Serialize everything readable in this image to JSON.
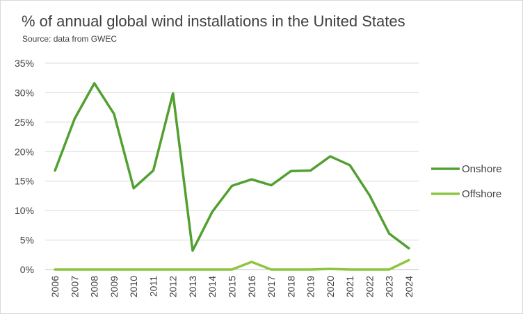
{
  "chart_data": {
    "type": "line",
    "title": "% of annual global wind installations in the United States",
    "subtitle": "Source: data from GWEC",
    "xlabel": "",
    "ylabel": "",
    "categories": [
      "2006",
      "2007",
      "2008",
      "2009",
      "2010",
      "2011",
      "2012",
      "2013",
      "2014",
      "2015",
      "2016",
      "2017",
      "2018",
      "2019",
      "2020",
      "2021",
      "2022",
      "2023",
      "2024"
    ],
    "series": [
      {
        "name": "Onshore",
        "color": "#52a030",
        "values": [
          16.8,
          25.6,
          31.6,
          26.4,
          13.8,
          16.8,
          29.9,
          3.2,
          9.8,
          14.2,
          15.3,
          14.3,
          16.7,
          16.8,
          19.2,
          17.7,
          12.6,
          6.1,
          3.6
        ]
      },
      {
        "name": "Offshore",
        "color": "#8cc63f",
        "values": [
          0,
          0,
          0,
          0,
          0,
          0,
          0,
          0,
          0,
          0,
          1.3,
          0,
          0,
          0,
          0.1,
          0,
          0,
          0,
          1.6
        ]
      }
    ],
    "ylim": [
      0,
      35
    ],
    "yticks": [
      0,
      5,
      10,
      15,
      20,
      25,
      30,
      35
    ],
    "ytick_labels": [
      "0%",
      "5%",
      "10%",
      "15%",
      "20%",
      "25%",
      "30%",
      "35%"
    ],
    "grid": true,
    "legend_position": "right"
  }
}
